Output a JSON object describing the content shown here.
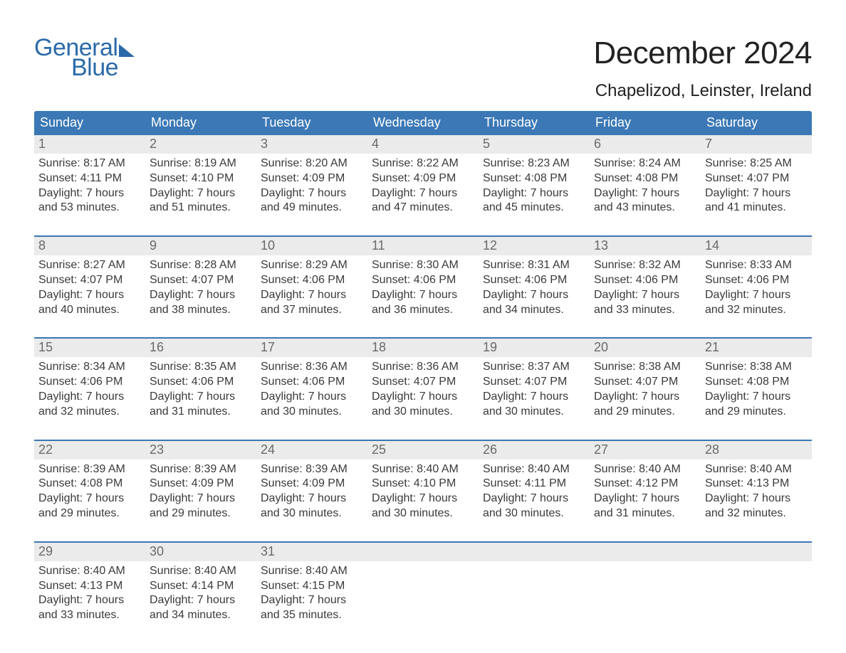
{
  "brand": {
    "word1": "General",
    "word2": "Blue",
    "color": "#2b6aa8"
  },
  "title": "December 2024",
  "location": "Chapelizod, Leinster, Ireland",
  "colors": {
    "header_bg": "#3b78b5",
    "header_text": "#ffffff",
    "daynum_bg": "#ebebeb",
    "daynum_text": "#6a6a6a",
    "body_text": "#3a3a3a",
    "week_border": "#3b78b5",
    "page_bg": "#ffffff"
  },
  "fonts": {
    "title_pt": 44,
    "location_pt": 24,
    "dow_pt": 18,
    "daynum_pt": 18,
    "body_pt": 16
  },
  "days_of_week": [
    "Sunday",
    "Monday",
    "Tuesday",
    "Wednesday",
    "Thursday",
    "Friday",
    "Saturday"
  ],
  "weeks": [
    [
      {
        "n": "1",
        "sr": "Sunrise: 8:17 AM",
        "ss": "Sunset: 4:11 PM",
        "d1": "Daylight: 7 hours",
        "d2": "and 53 minutes."
      },
      {
        "n": "2",
        "sr": "Sunrise: 8:19 AM",
        "ss": "Sunset: 4:10 PM",
        "d1": "Daylight: 7 hours",
        "d2": "and 51 minutes."
      },
      {
        "n": "3",
        "sr": "Sunrise: 8:20 AM",
        "ss": "Sunset: 4:09 PM",
        "d1": "Daylight: 7 hours",
        "d2": "and 49 minutes."
      },
      {
        "n": "4",
        "sr": "Sunrise: 8:22 AM",
        "ss": "Sunset: 4:09 PM",
        "d1": "Daylight: 7 hours",
        "d2": "and 47 minutes."
      },
      {
        "n": "5",
        "sr": "Sunrise: 8:23 AM",
        "ss": "Sunset: 4:08 PM",
        "d1": "Daylight: 7 hours",
        "d2": "and 45 minutes."
      },
      {
        "n": "6",
        "sr": "Sunrise: 8:24 AM",
        "ss": "Sunset: 4:08 PM",
        "d1": "Daylight: 7 hours",
        "d2": "and 43 minutes."
      },
      {
        "n": "7",
        "sr": "Sunrise: 8:25 AM",
        "ss": "Sunset: 4:07 PM",
        "d1": "Daylight: 7 hours",
        "d2": "and 41 minutes."
      }
    ],
    [
      {
        "n": "8",
        "sr": "Sunrise: 8:27 AM",
        "ss": "Sunset: 4:07 PM",
        "d1": "Daylight: 7 hours",
        "d2": "and 40 minutes."
      },
      {
        "n": "9",
        "sr": "Sunrise: 8:28 AM",
        "ss": "Sunset: 4:07 PM",
        "d1": "Daylight: 7 hours",
        "d2": "and 38 minutes."
      },
      {
        "n": "10",
        "sr": "Sunrise: 8:29 AM",
        "ss": "Sunset: 4:06 PM",
        "d1": "Daylight: 7 hours",
        "d2": "and 37 minutes."
      },
      {
        "n": "11",
        "sr": "Sunrise: 8:30 AM",
        "ss": "Sunset: 4:06 PM",
        "d1": "Daylight: 7 hours",
        "d2": "and 36 minutes."
      },
      {
        "n": "12",
        "sr": "Sunrise: 8:31 AM",
        "ss": "Sunset: 4:06 PM",
        "d1": "Daylight: 7 hours",
        "d2": "and 34 minutes."
      },
      {
        "n": "13",
        "sr": "Sunrise: 8:32 AM",
        "ss": "Sunset: 4:06 PM",
        "d1": "Daylight: 7 hours",
        "d2": "and 33 minutes."
      },
      {
        "n": "14",
        "sr": "Sunrise: 8:33 AM",
        "ss": "Sunset: 4:06 PM",
        "d1": "Daylight: 7 hours",
        "d2": "and 32 minutes."
      }
    ],
    [
      {
        "n": "15",
        "sr": "Sunrise: 8:34 AM",
        "ss": "Sunset: 4:06 PM",
        "d1": "Daylight: 7 hours",
        "d2": "and 32 minutes."
      },
      {
        "n": "16",
        "sr": "Sunrise: 8:35 AM",
        "ss": "Sunset: 4:06 PM",
        "d1": "Daylight: 7 hours",
        "d2": "and 31 minutes."
      },
      {
        "n": "17",
        "sr": "Sunrise: 8:36 AM",
        "ss": "Sunset: 4:06 PM",
        "d1": "Daylight: 7 hours",
        "d2": "and 30 minutes."
      },
      {
        "n": "18",
        "sr": "Sunrise: 8:36 AM",
        "ss": "Sunset: 4:07 PM",
        "d1": "Daylight: 7 hours",
        "d2": "and 30 minutes."
      },
      {
        "n": "19",
        "sr": "Sunrise: 8:37 AM",
        "ss": "Sunset: 4:07 PM",
        "d1": "Daylight: 7 hours",
        "d2": "and 30 minutes."
      },
      {
        "n": "20",
        "sr": "Sunrise: 8:38 AM",
        "ss": "Sunset: 4:07 PM",
        "d1": "Daylight: 7 hours",
        "d2": "and 29 minutes."
      },
      {
        "n": "21",
        "sr": "Sunrise: 8:38 AM",
        "ss": "Sunset: 4:08 PM",
        "d1": "Daylight: 7 hours",
        "d2": "and 29 minutes."
      }
    ],
    [
      {
        "n": "22",
        "sr": "Sunrise: 8:39 AM",
        "ss": "Sunset: 4:08 PM",
        "d1": "Daylight: 7 hours",
        "d2": "and 29 minutes."
      },
      {
        "n": "23",
        "sr": "Sunrise: 8:39 AM",
        "ss": "Sunset: 4:09 PM",
        "d1": "Daylight: 7 hours",
        "d2": "and 29 minutes."
      },
      {
        "n": "24",
        "sr": "Sunrise: 8:39 AM",
        "ss": "Sunset: 4:09 PM",
        "d1": "Daylight: 7 hours",
        "d2": "and 30 minutes."
      },
      {
        "n": "25",
        "sr": "Sunrise: 8:40 AM",
        "ss": "Sunset: 4:10 PM",
        "d1": "Daylight: 7 hours",
        "d2": "and 30 minutes."
      },
      {
        "n": "26",
        "sr": "Sunrise: 8:40 AM",
        "ss": "Sunset: 4:11 PM",
        "d1": "Daylight: 7 hours",
        "d2": "and 30 minutes."
      },
      {
        "n": "27",
        "sr": "Sunrise: 8:40 AM",
        "ss": "Sunset: 4:12 PM",
        "d1": "Daylight: 7 hours",
        "d2": "and 31 minutes."
      },
      {
        "n": "28",
        "sr": "Sunrise: 8:40 AM",
        "ss": "Sunset: 4:13 PM",
        "d1": "Daylight: 7 hours",
        "d2": "and 32 minutes."
      }
    ],
    [
      {
        "n": "29",
        "sr": "Sunrise: 8:40 AM",
        "ss": "Sunset: 4:13 PM",
        "d1": "Daylight: 7 hours",
        "d2": "and 33 minutes."
      },
      {
        "n": "30",
        "sr": "Sunrise: 8:40 AM",
        "ss": "Sunset: 4:14 PM",
        "d1": "Daylight: 7 hours",
        "d2": "and 34 minutes."
      },
      {
        "n": "31",
        "sr": "Sunrise: 8:40 AM",
        "ss": "Sunset: 4:15 PM",
        "d1": "Daylight: 7 hours",
        "d2": "and 35 minutes."
      },
      {
        "n": "",
        "sr": "",
        "ss": "",
        "d1": "",
        "d2": ""
      },
      {
        "n": "",
        "sr": "",
        "ss": "",
        "d1": "",
        "d2": ""
      },
      {
        "n": "",
        "sr": "",
        "ss": "",
        "d1": "",
        "d2": ""
      },
      {
        "n": "",
        "sr": "",
        "ss": "",
        "d1": "",
        "d2": ""
      }
    ]
  ]
}
